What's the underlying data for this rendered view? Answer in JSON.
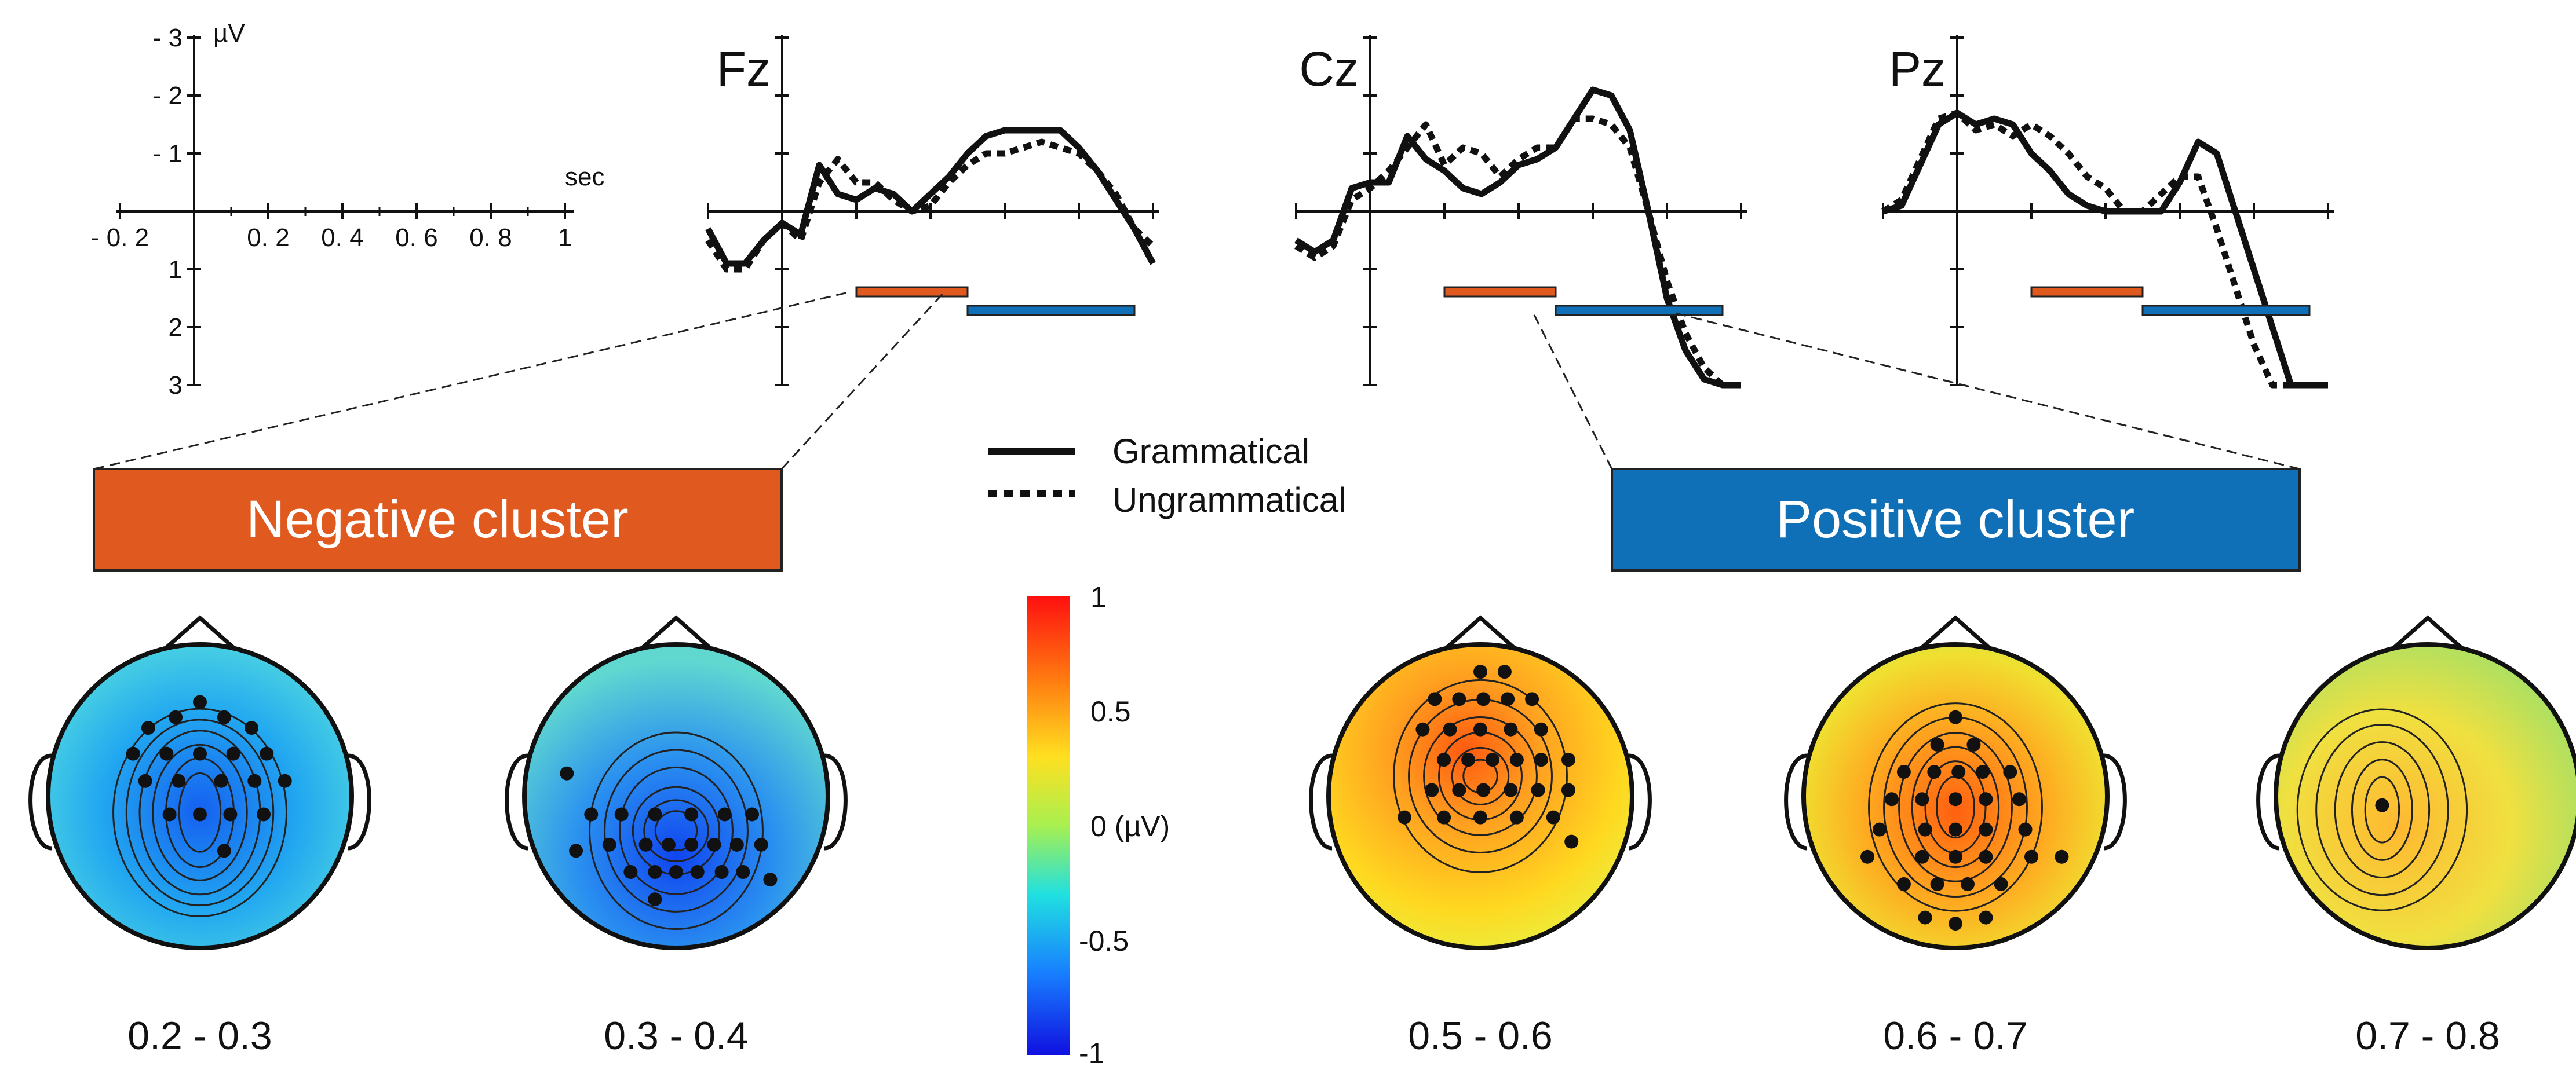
{
  "scale_panel": {
    "y_unit": "µV",
    "x_unit": "sec",
    "y_ticks": [
      "- 3",
      "- 2",
      "- 1",
      "1",
      "2",
      "3"
    ],
    "x_ticks": [
      "- 0. 2",
      "0. 2",
      "0. 4",
      "0. 6",
      "0. 8",
      "1"
    ]
  },
  "chart_data": {
    "type": "line",
    "x_range_sec": [
      -0.2,
      1.0
    ],
    "y_range_uv": [
      -3,
      3
    ],
    "y_axis_negative_up": true,
    "series_names": [
      "Grammatical",
      "Ungrammatical"
    ],
    "channels": [
      {
        "name": "Fz",
        "x": [
          -0.2,
          -0.15,
          -0.1,
          -0.05,
          0,
          0.05,
          0.1,
          0.15,
          0.2,
          0.25,
          0.3,
          0.35,
          0.4,
          0.45,
          0.5,
          0.55,
          0.6,
          0.65,
          0.7,
          0.75,
          0.8,
          0.85,
          0.9,
          0.95,
          1.0
        ],
        "grammatical": [
          0.3,
          0.9,
          0.9,
          0.5,
          0.2,
          0.4,
          -0.8,
          -0.3,
          -0.2,
          -0.4,
          -0.3,
          0.0,
          -0.3,
          -0.6,
          -1.0,
          -1.3,
          -1.4,
          -1.4,
          -1.4,
          -1.4,
          -1.1,
          -0.7,
          -0.2,
          0.3,
          0.9
        ],
        "ungrammatical": [
          0.5,
          1.0,
          1.0,
          0.5,
          0.2,
          0.5,
          -0.5,
          -0.9,
          -0.5,
          -0.5,
          -0.2,
          0.0,
          -0.1,
          -0.5,
          -0.8,
          -1.0,
          -1.0,
          -1.1,
          -1.2,
          -1.1,
          -1.0,
          -0.7,
          -0.3,
          0.3,
          0.6
        ]
      },
      {
        "name": "Cz",
        "x": [
          -0.2,
          -0.15,
          -0.1,
          -0.05,
          0,
          0.05,
          0.1,
          0.15,
          0.2,
          0.25,
          0.3,
          0.35,
          0.4,
          0.45,
          0.5,
          0.55,
          0.6,
          0.65,
          0.7,
          0.75,
          0.8,
          0.85,
          0.9,
          0.95,
          1.0
        ],
        "grammatical": [
          0.5,
          0.7,
          0.5,
          -0.4,
          -0.5,
          -0.5,
          -1.3,
          -0.9,
          -0.7,
          -0.4,
          -0.3,
          -0.5,
          -0.8,
          -0.9,
          -1.1,
          -1.6,
          -2.1,
          -2.0,
          -1.4,
          0.0,
          1.5,
          2.4,
          2.9,
          3.0,
          3.0
        ],
        "ungrammatical": [
          0.6,
          0.8,
          0.6,
          -0.2,
          -0.4,
          -0.7,
          -1.1,
          -1.5,
          -0.8,
          -1.1,
          -1.0,
          -0.6,
          -0.9,
          -1.1,
          -1.1,
          -1.6,
          -1.6,
          -1.5,
          -1.1,
          0.0,
          1.2,
          2.1,
          2.7,
          3.0,
          3.0
        ]
      },
      {
        "name": "Pz",
        "x": [
          -0.2,
          -0.15,
          -0.1,
          -0.05,
          0,
          0.05,
          0.1,
          0.15,
          0.2,
          0.25,
          0.3,
          0.35,
          0.4,
          0.45,
          0.5,
          0.55,
          0.6,
          0.65,
          0.7,
          0.75,
          0.8,
          0.85,
          0.9,
          0.95,
          1.0
        ],
        "grammatical": [
          0.0,
          -0.1,
          -0.8,
          -1.5,
          -1.7,
          -1.5,
          -1.6,
          -1.5,
          -1.0,
          -0.7,
          -0.3,
          -0.1,
          0.0,
          0.0,
          0.0,
          0.0,
          -0.5,
          -1.2,
          -1.0,
          0.0,
          1.0,
          2.0,
          3.0,
          3.0,
          3.0
        ],
        "ungrammatical": [
          0.0,
          -0.2,
          -0.9,
          -1.6,
          -1.7,
          -1.4,
          -1.5,
          -1.3,
          -1.5,
          -1.3,
          -1.0,
          -0.6,
          -0.4,
          0.0,
          0.0,
          -0.3,
          -0.6,
          -0.6,
          0.3,
          1.3,
          2.3,
          3.0,
          3.0,
          3.0,
          3.0
        ]
      }
    ],
    "negative_window_sec": [
      0.2,
      0.5
    ],
    "positive_window_sec": [
      0.5,
      0.95
    ]
  },
  "legend": {
    "solid": "Grammatical",
    "dotted": "Ungrammatical"
  },
  "clusters": {
    "negative": "Negative cluster",
    "positive": "Positive cluster"
  },
  "colorbar": {
    "max": "1",
    "mid_pos": "0.5",
    "zero": "0 (µV)",
    "mid_neg": "-0.5",
    "min": "-1"
  },
  "topomaps": [
    {
      "window": "0.2 - 0.3",
      "level": -0.55
    },
    {
      "window": "0.3 - 0.4",
      "level": -0.6
    },
    {
      "window": "0.5 - 0.6",
      "level": 0.7
    },
    {
      "window": "0.6 - 0.7",
      "level": 0.65
    },
    {
      "window": "0.7 - 0.8",
      "level": 0.25
    }
  ],
  "colors": {
    "negative": "#e05a20",
    "positive": "#0f70b8"
  }
}
